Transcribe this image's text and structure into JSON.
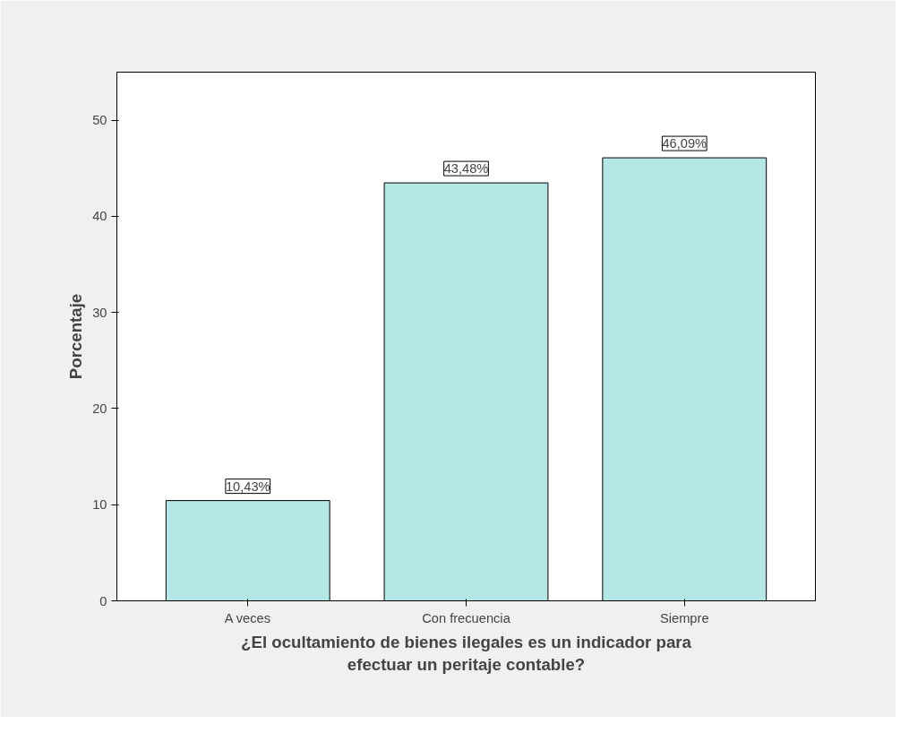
{
  "chart_data": {
    "type": "bar",
    "categories": [
      "A veces",
      "Con frecuencia",
      "Siempre"
    ],
    "values": [
      10.43,
      43.48,
      46.09
    ],
    "value_labels": [
      "10,43%",
      "43,48%",
      "46,09%"
    ],
    "color": "#b4e6e6",
    "xlabel": "¿El ocultamiento de bienes ilegales es un indicador para\nefectuar un peritaje contable?",
    "ylabel": "Porcentaje",
    "ylim": [
      0,
      55
    ],
    "yticks": [
      0,
      10,
      20,
      30,
      40,
      50
    ],
    "grid": false
  }
}
